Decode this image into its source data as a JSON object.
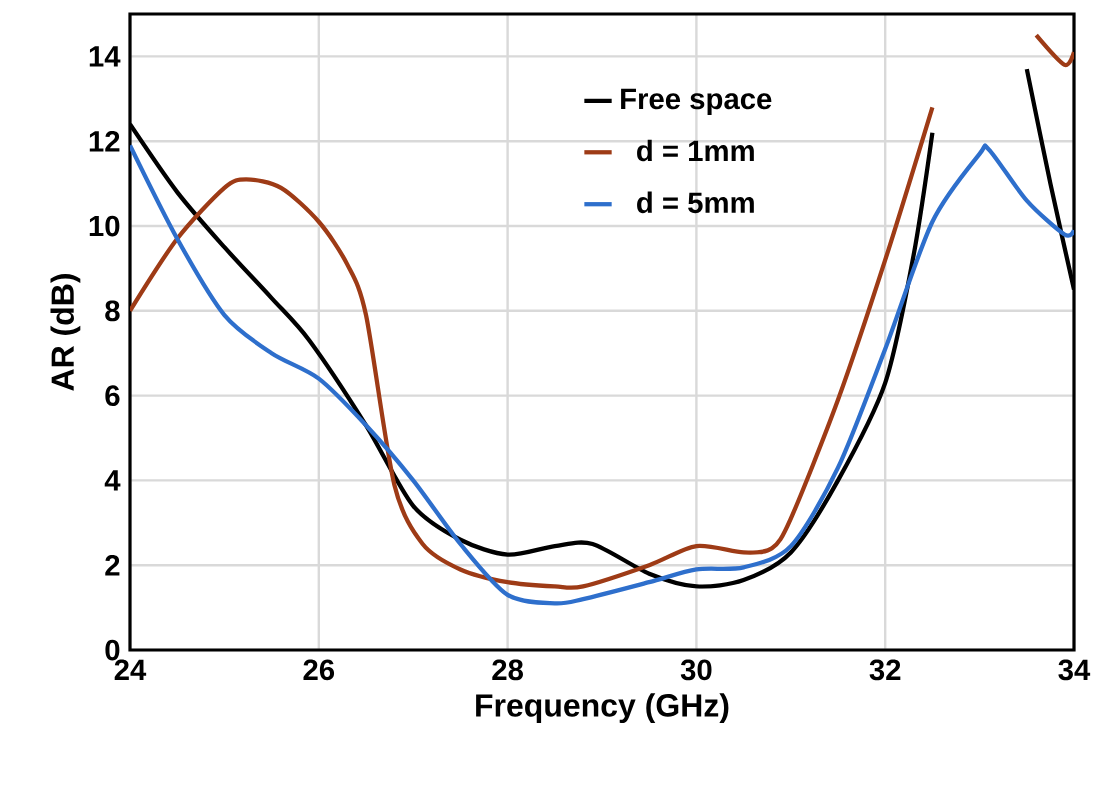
{
  "chart_data": {
    "type": "line",
    "xlabel": "Frequency (GHz)",
    "ylabel": "AR (dB)",
    "xlim": [
      24,
      34
    ],
    "ylim": [
      0,
      15
    ],
    "xticks": [
      24,
      26,
      28,
      30,
      32,
      34
    ],
    "yticks": [
      0,
      2,
      4,
      6,
      8,
      10,
      12,
      14
    ],
    "grid": true,
    "legend": "top right",
    "marker": "none",
    "line_style": "solid",
    "series": [
      {
        "name": "Free space",
        "color": "#000000",
        "x": [
          24,
          24.5,
          25,
          25.5,
          25.9,
          26.5,
          27,
          27.5,
          28,
          28.5,
          28.9,
          29.5,
          30,
          30.5,
          31,
          31.5,
          32,
          32.3,
          32.5,
          32.67,
          33,
          33.37,
          33.5,
          33.75,
          34
        ],
        "values": [
          12.4,
          10.8,
          9.5,
          8.3,
          7.3,
          5.3,
          3.4,
          2.6,
          2.25,
          2.45,
          2.5,
          1.8,
          1.5,
          1.65,
          2.3,
          4.0,
          6.3,
          9.3,
          12.2,
          null,
          null,
          null,
          13.7,
          11.0,
          8.5
        ]
      },
      {
        "name": "d = 1mm",
        "color": "#9e3b16",
        "x": [
          24,
          24.5,
          25,
          25.23,
          25.6,
          26,
          26.3,
          26.5,
          26.8,
          27.1,
          27.5,
          28,
          28.5,
          28.8,
          29.5,
          30,
          30.5,
          30.8,
          31,
          31.5,
          32,
          32.5,
          32.7,
          33,
          33.4,
          33.6,
          33.9,
          34
        ],
        "values": [
          8.0,
          9.7,
          10.9,
          11.1,
          10.9,
          10.1,
          9.1,
          7.9,
          3.9,
          2.5,
          1.9,
          1.6,
          1.5,
          1.5,
          2.0,
          2.45,
          2.3,
          2.4,
          3.1,
          5.9,
          9.2,
          12.8,
          null,
          null,
          null,
          14.5,
          13.8,
          14.1
        ]
      },
      {
        "name": "d = 5mm",
        "color": "#2e6fcc",
        "x": [
          24,
          24.5,
          25,
          25.5,
          26,
          26.5,
          27,
          27.5,
          28,
          28.5,
          28.8,
          29.5,
          30,
          30.5,
          31,
          31.5,
          32,
          32.5,
          33,
          33.1,
          33.5,
          33.9,
          34
        ],
        "values": [
          11.9,
          9.7,
          7.9,
          7.0,
          6.4,
          5.3,
          4.0,
          2.5,
          1.3,
          1.1,
          1.2,
          1.6,
          1.9,
          1.95,
          2.45,
          4.3,
          7.1,
          10.1,
          11.7,
          11.8,
          10.6,
          9.8,
          9.9
        ]
      }
    ]
  }
}
